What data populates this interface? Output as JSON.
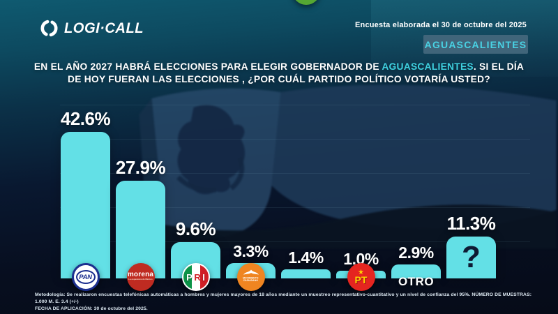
{
  "header": {
    "brand": "LOGI·CALL",
    "survey_note": "Encuesta elaborada el 30 de octubre del 2025",
    "state_badge": "AGUASCALIENTES"
  },
  "title": {
    "line1_before": "EN EL AÑO 2027 HABRÁ ELECCIONES PARA ELEGIR GOBERNADOR DE ",
    "line1_highlight": "AGUASCALIENTES",
    "line1_after": ".  SI EL DÍA",
    "line2": "DE HOY FUERAN LAS ELECCIONES , ¿POR CUÁL PARTIDO POLÍTICO VOTARÍA USTED?"
  },
  "chart_data": {
    "type": "bar",
    "title": "EN EL AÑO 2027 HABRÁ ELECCIONES PARA ELEGIR GOBERNADOR DE AGUASCALIENTES. SI EL DÍA DE HOY FUERAN LAS ELECCIONES, ¿POR CUÁL PARTIDO POLÍTICO VOTARÍA USTED?",
    "unit": "%",
    "ylim": [
      0,
      50
    ],
    "gridlines": true,
    "legend_position": "none",
    "categories": [
      "PAN",
      "MORENA",
      "PRI",
      "MOVIMIENTO CIUDADANO",
      "VERDE",
      "PT",
      "OTRO",
      "?"
    ],
    "values": [
      42.6,
      27.9,
      9.6,
      3.3,
      1.4,
      1.0,
      2.9,
      11.3
    ],
    "bars": [
      {
        "party": "PAN",
        "value": 42.6,
        "display": "42.6%",
        "logo": "pan"
      },
      {
        "party": "MORENA",
        "value": 27.9,
        "display": "27.9%",
        "logo": "morena"
      },
      {
        "party": "PRI",
        "value": 9.6,
        "display": "9.6%",
        "logo": "pri"
      },
      {
        "party": "MOVIMIENTO CIUDADANO",
        "value": 3.3,
        "display": "3.3%",
        "logo": "mc"
      },
      {
        "party": "VERDE",
        "value": 1.4,
        "display": "1.4%",
        "logo": "verde"
      },
      {
        "party": "PT",
        "value": 1.0,
        "display": "1.0%",
        "logo": "pt"
      },
      {
        "party": "OTRO",
        "value": 2.9,
        "display": "2.9%",
        "logo": "none",
        "caption": "OTRO"
      },
      {
        "party": "?",
        "value": 11.3,
        "display": "11.3%",
        "logo": "question",
        "glyph": "?"
      }
    ]
  },
  "logos": {
    "pan_text": "PAN",
    "morena_text": "morena",
    "morena_subtext": "La esperanza de México",
    "pri_letters": [
      "P",
      "R",
      "I"
    ],
    "mc_text_line1": "MOVIMIENTO",
    "mc_text_line2": "CIUDADANO",
    "verde_v": "V",
    "verde_text": "VERDE",
    "pt_star": "★",
    "pt_text": "PT"
  },
  "footer": {
    "line1": "Metodología: Se realizaron encuestas telefónicas automáticas a hombres y mujeres mayores de 18 años mediante un muestreo representativo-cuantitativo y un nivel de confianza del 95%. NÚMERO DE MUESTRAS: 1.000 M. E. 3.4 (+/-)",
    "line2": "FECHA DE APLICACIÓN: 30 de octubre del 2025."
  },
  "colors": {
    "bar": "#63e0e6",
    "accent": "#3fd1e0",
    "badge_bg": "#40657a",
    "badge_text": "#49d2e4",
    "pan": "#1c2f8f",
    "morena": "#bf2b21",
    "pri_green": "#0c9347",
    "pri_red": "#d01f26",
    "mc": "#ef8521",
    "verde": "#55a733",
    "pt": "#e52520",
    "pt_yellow": "#ffd400",
    "qmark": "#0e1a33"
  }
}
